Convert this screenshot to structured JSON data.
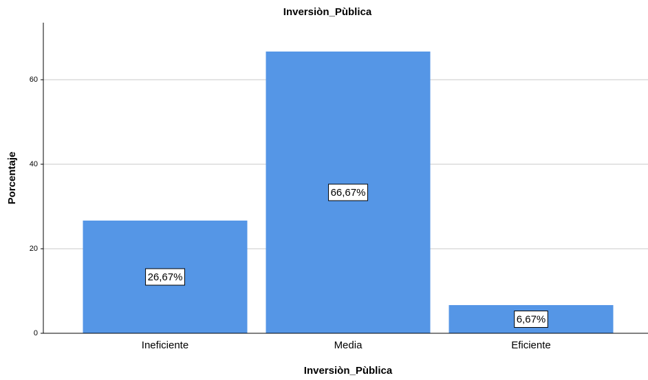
{
  "chart_data": {
    "type": "bar",
    "title": "Inversiòn_Pùblica",
    "x_label": "Inversiòn_Pùblica",
    "y_label": "Porcentaje",
    "categories": [
      "Ineficiente",
      "Media",
      "Eficiente"
    ],
    "values": [
      26.67,
      66.67,
      6.67
    ],
    "value_labels": [
      "26,67%",
      "66,67%",
      "6,67%"
    ],
    "color": "#5596e6",
    "ylim": [
      0,
      73.5
    ],
    "yticks": [
      0,
      20,
      40,
      60
    ],
    "grid": true
  }
}
